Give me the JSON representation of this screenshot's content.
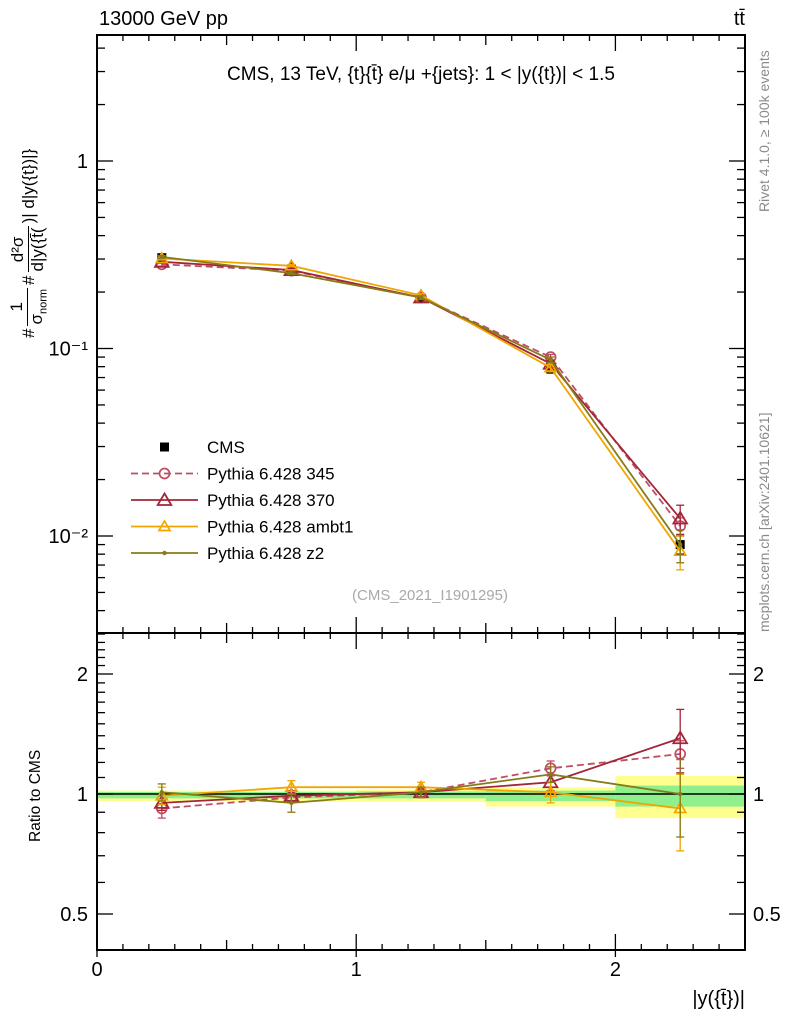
{
  "header": {
    "left": "13000 GeV pp",
    "right": "tt̄"
  },
  "titles": {
    "plot": "CMS, 13 TeV, {t}{t̄} e/μ +{jets}: 1 < |y({t})| < 1.5",
    "watermark": "(CMS_2021_I1901295)",
    "x_axis": "|y({t̄})|",
    "ratio_axis": "Ratio to CMS"
  },
  "ylabel": {
    "hash1": "#",
    "f1num": "1",
    "f1den_base": "σ",
    "f1den_sub": "norm",
    "hash2": "#",
    "f2num": "d²σ",
    "f2den": "d|y({t̄(",
    "suffix": ")| d|y({t})|}"
  },
  "side_notes": {
    "rivet": "Rivet 4.1.0, ≥ 100k events",
    "mcplots": "mcplots.cern.ch [arXiv:2401.10621]"
  },
  "chart_data": {
    "type": "line",
    "x": [
      0.25,
      0.75,
      1.25,
      1.75,
      2.25
    ],
    "bin_edges": [
      0,
      0.5,
      1.0,
      1.5,
      2.0,
      2.5
    ],
    "xlim": [
      0,
      2.5
    ],
    "main_y_log": true,
    "main_ylim": [
      0.003,
      4.7
    ],
    "ratio_y_log": true,
    "ratio_ylim": [
      0.4,
      2.57
    ],
    "grid": false,
    "legend_position": "left-middle",
    "series": [
      {
        "name": "CMS",
        "color": "#000000",
        "marker": "square",
        "line": "none",
        "values": [
          0.305,
          0.265,
          0.185,
          0.078,
          0.009
        ],
        "errors": [
          0.008,
          0.007,
          0.005,
          0.004,
          0.001
        ]
      },
      {
        "name": "Pythia 6.428 345",
        "color": "#bf4d63",
        "marker": "circle",
        "line": "dashed",
        "values": [
          0.281,
          0.26,
          0.187,
          0.09,
          0.0113
        ],
        "errors": [
          0.006,
          0.004,
          0.004,
          0.003,
          0.0012
        ],
        "ratio": [
          0.92,
          0.98,
          1.01,
          1.16,
          1.26
        ],
        "ratio_errors": [
          0.05,
          0.03,
          0.03,
          0.05,
          0.1
        ]
      },
      {
        "name": "Pythia 6.428 370",
        "color": "#a32638",
        "marker": "triangle",
        "line": "solid",
        "values": [
          0.29,
          0.262,
          0.187,
          0.083,
          0.0124
        ],
        "errors": [
          0.005,
          0.004,
          0.004,
          0.003,
          0.0022
        ],
        "ratio": [
          0.95,
          0.99,
          1.01,
          1.07,
          1.38
        ],
        "ratio_errors": [
          0.04,
          0.03,
          0.03,
          0.05,
          0.25
        ]
      },
      {
        "name": "Pythia 6.428 ambt1",
        "color": "#f0a500",
        "marker": "triangle-small",
        "line": "solid",
        "values": [
          0.302,
          0.276,
          0.192,
          0.079,
          0.0083
        ],
        "errors": [
          0.005,
          0.004,
          0.004,
          0.003,
          0.0017
        ],
        "ratio": [
          0.99,
          1.04,
          1.04,
          1.01,
          0.92
        ],
        "ratio_errors": [
          0.05,
          0.04,
          0.03,
          0.06,
          0.2
        ]
      },
      {
        "name": "Pythia 6.428 z2",
        "color": "#867b17",
        "marker": "dot",
        "line": "solid",
        "values": [
          0.308,
          0.252,
          0.187,
          0.087,
          0.009
        ],
        "errors": [
          0.005,
          0.004,
          0.004,
          0.003,
          0.0018
        ],
        "ratio": [
          1.01,
          0.95,
          1.01,
          1.12,
          1.0
        ],
        "ratio_errors": [
          0.05,
          0.05,
          0.03,
          0.05,
          0.22
        ]
      }
    ],
    "bands": {
      "yellow_color": "#ffff8f",
      "green_color": "#8df08c",
      "yellow_bins": [
        [
          0,
          0.5,
          0.96,
          1.02
        ],
        [
          0.5,
          1,
          0.955,
          1.02
        ],
        [
          1,
          1.5,
          0.955,
          1.025
        ],
        [
          1.5,
          2,
          0.93,
          1.04
        ],
        [
          2,
          2.5,
          0.87,
          1.11
        ]
      ],
      "green_bins": [
        [
          0,
          0.5,
          0.975,
          1.012
        ],
        [
          0.5,
          1,
          0.975,
          1.012
        ],
        [
          1,
          1.5,
          0.975,
          1.015
        ],
        [
          1.5,
          2,
          0.96,
          1.02
        ],
        [
          2,
          2.5,
          0.93,
          1.05
        ]
      ]
    },
    "x_ticks": [
      {
        "v": 0,
        "label": "0"
      },
      {
        "v": 1,
        "label": "1"
      },
      {
        "v": 2,
        "label": "2"
      }
    ],
    "main_y_ticks": [
      {
        "v": 1,
        "label": "1"
      },
      {
        "v": 0.1,
        "label": "10⁻¹"
      },
      {
        "v": 0.01,
        "label": "10⁻²"
      }
    ],
    "ratio_y_ticks": [
      {
        "v": 2,
        "label": "2"
      },
      {
        "v": 1,
        "label": "1"
      },
      {
        "v": 0.5,
        "label": "0.5"
      }
    ]
  }
}
